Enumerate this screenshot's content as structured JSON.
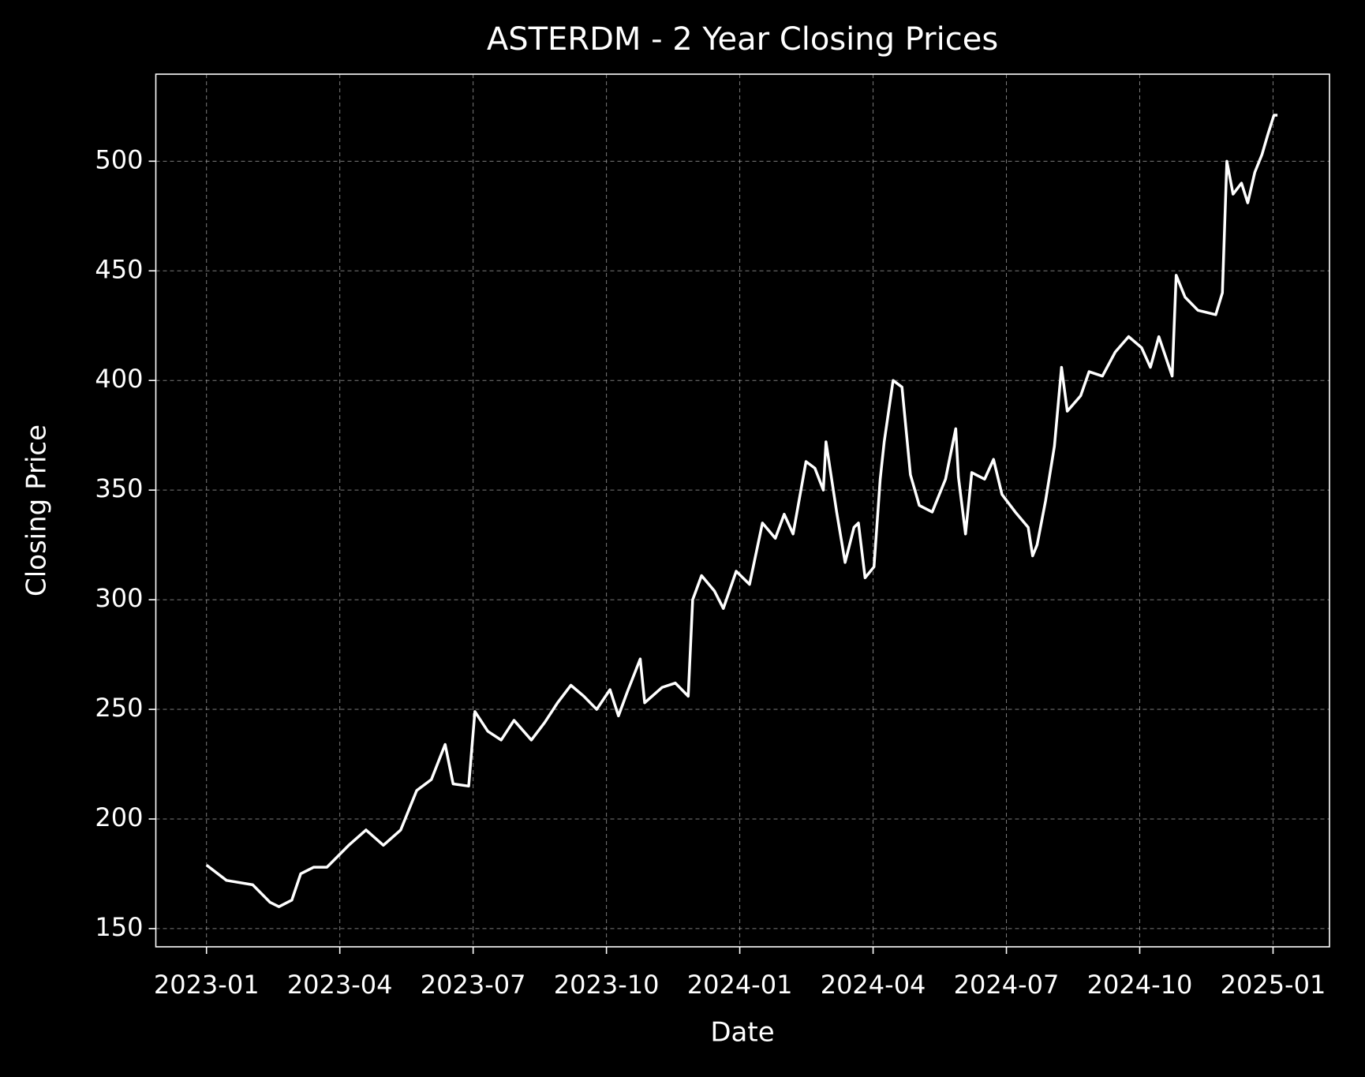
{
  "chart_data": {
    "type": "line",
    "title": "ASTERDM - 2 Year Closing Prices",
    "x_label": "Date",
    "y_label": "Closing Price",
    "x": [
      0,
      0.45,
      1.04,
      1.43,
      1.63,
      1.92,
      2.12,
      2.41,
      2.71,
      3.2,
      3.59,
      3.98,
      4.37,
      4.73,
      5.06,
      5.37,
      5.55,
      5.9,
      6.04,
      6.33,
      6.63,
      6.92,
      7.31,
      7.61,
      7.9,
      8.2,
      8.49,
      8.78,
      9.08,
      9.27,
      9.47,
      9.76,
      9.86,
      10.25,
      10.55,
      10.84,
      10.94,
      11.14,
      11.43,
      11.63,
      11.92,
      12.22,
      12.51,
      12.8,
      13,
      13.2,
      13.49,
      13.69,
      13.88,
      13.94,
      14.18,
      14.37,
      14.57,
      14.67,
      14.82,
      15.02,
      15.16,
      15.25,
      15.45,
      15.65,
      15.84,
      16.04,
      16.33,
      16.63,
      16.86,
      16.92,
      17.08,
      17.22,
      17.51,
      17.71,
      17.9,
      18.2,
      18.49,
      18.59,
      18.69,
      18.88,
      19.08,
      19.24,
      19.37,
      19.67,
      19.86,
      20.16,
      20.45,
      20.75,
      21.04,
      21.24,
      21.43,
      21.73,
      21.82,
      22.02,
      22.31,
      22.71,
      22.86,
      22.96,
      23.1,
      23.29,
      23.43,
      23.59,
      23.75,
      23.88,
      24.02,
      24.1
    ],
    "series": [
      {
        "name": "Closing Price",
        "color": "#ffffff",
        "values": [
          179,
          172,
          170,
          162,
          160,
          163,
          175,
          178,
          178,
          188,
          195,
          188,
          195,
          213,
          218,
          234,
          216,
          215,
          249,
          240,
          236,
          245,
          236,
          244,
          253,
          261,
          256,
          250,
          259,
          247,
          258,
          273,
          253,
          260,
          262,
          256,
          300,
          311,
          304,
          296,
          313,
          307,
          335,
          328,
          339,
          330,
          363,
          360,
          350,
          372,
          340,
          317,
          333,
          335,
          310,
          315,
          355,
          372,
          400,
          397,
          357,
          343,
          340,
          355,
          378,
          356,
          330,
          358,
          355,
          364,
          348,
          340,
          333,
          320,
          325,
          345,
          370,
          406,
          386,
          393,
          404,
          402,
          413,
          420,
          415,
          406,
          420,
          402,
          448,
          438,
          432,
          430,
          440,
          500,
          485,
          490,
          481,
          495,
          503,
          512,
          521,
          521
        ]
      }
    ],
    "xlim": [
      -1.14,
      25.27
    ],
    "xticks": [
      {
        "value": 0,
        "label": "2023-01"
      },
      {
        "value": 3,
        "label": "2023-04"
      },
      {
        "value": 6,
        "label": "2023-07"
      },
      {
        "value": 9,
        "label": "2023-10"
      },
      {
        "value": 12,
        "label": "2024-01"
      },
      {
        "value": 15,
        "label": "2024-04"
      },
      {
        "value": 18,
        "label": "2024-07"
      },
      {
        "value": 21,
        "label": "2024-10"
      },
      {
        "value": 24,
        "label": "2025-01"
      }
    ],
    "ylim": [
      141.7,
      539.7
    ],
    "yticks": [
      150,
      200,
      250,
      300,
      350,
      400,
      450,
      500
    ],
    "grid": true
  }
}
